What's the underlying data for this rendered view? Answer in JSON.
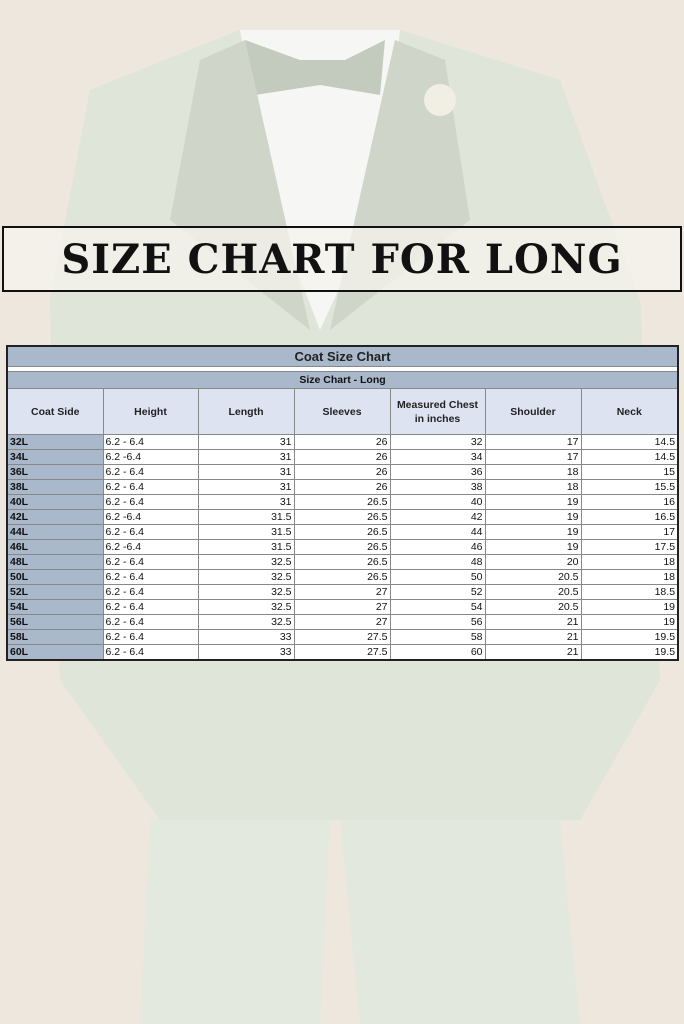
{
  "banner": {
    "title": "SIZE CHART FOR LONG"
  },
  "table": {
    "caption": "Coat Size Chart",
    "subtitle": "Size Chart - Long",
    "headers": [
      "Coat Side",
      "Height",
      "Length",
      "Sleeves",
      "Measured Chest in inches",
      "Shoulder",
      "Neck"
    ],
    "rows": [
      [
        "32L",
        "6.2 - 6.4",
        "31",
        "26",
        "32",
        "17",
        "14.5"
      ],
      [
        "34L",
        "6.2 -6.4",
        "31",
        "26",
        "34",
        "17",
        "14.5"
      ],
      [
        "36L",
        "6.2 - 6.4",
        "31",
        "26",
        "36",
        "18",
        "15"
      ],
      [
        "38L",
        "6.2 - 6.4",
        "31",
        "26",
        "38",
        "18",
        "15.5"
      ],
      [
        "40L",
        "6.2 - 6.4",
        "31",
        "26.5",
        "40",
        "19",
        "16"
      ],
      [
        "42L",
        "6.2 -6.4",
        "31.5",
        "26.5",
        "42",
        "19",
        "16.5"
      ],
      [
        "44L",
        "6.2 - 6.4",
        "31.5",
        "26.5",
        "44",
        "19",
        "17"
      ],
      [
        "46L",
        "6.2 -6.4",
        "31.5",
        "26.5",
        "46",
        "19",
        "17.5"
      ],
      [
        "48L",
        "6.2 - 6.4",
        "32.5",
        "26.5",
        "48",
        "20",
        "18"
      ],
      [
        "50L",
        "6.2 - 6.4",
        "32.5",
        "26.5",
        "50",
        "20.5",
        "18"
      ],
      [
        "52L",
        "6.2 - 6.4",
        "32.5",
        "27",
        "52",
        "20.5",
        "18.5"
      ],
      [
        "54L",
        "6.2 - 6.4",
        "32.5",
        "27",
        "54",
        "20.5",
        "19"
      ],
      [
        "56L",
        "6.2 - 6.4",
        "32.5",
        "27",
        "56",
        "21",
        "19"
      ],
      [
        "58L",
        "6.2 - 6.4",
        "33",
        "27.5",
        "58",
        "21",
        "19.5"
      ],
      [
        "60L",
        "6.2 - 6.4",
        "33",
        "27.5",
        "60",
        "21",
        "19.5"
      ]
    ]
  },
  "colors": {
    "header_fill": "#a9b8cb",
    "column_header_fill": "#dde3f1",
    "suit": "#dfe6da"
  }
}
